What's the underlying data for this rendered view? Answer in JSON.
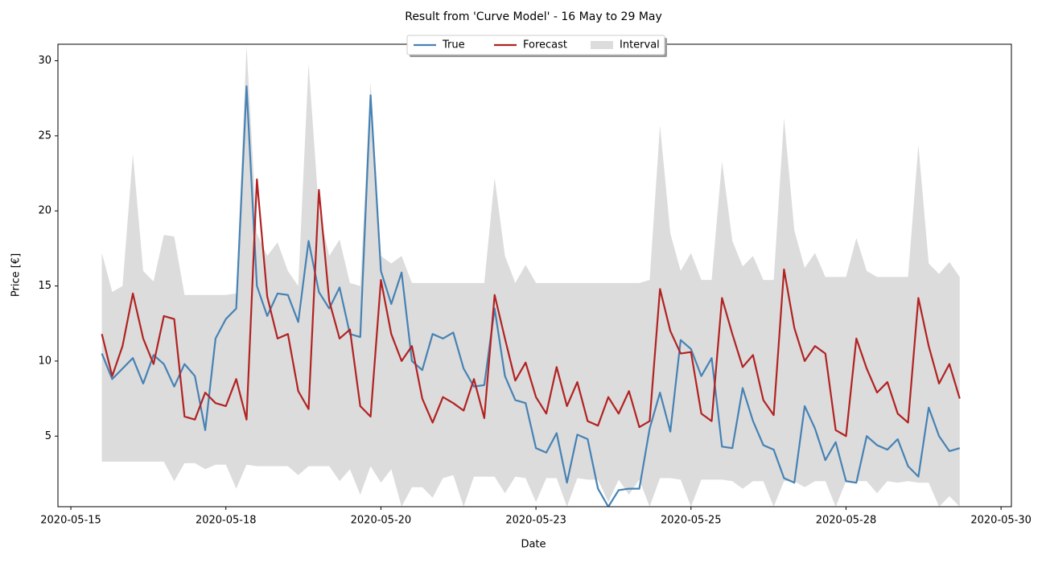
{
  "chart_data": {
    "type": "line",
    "title": "Result from 'Curve Model' - 16 May to 29 May",
    "x_label": "Date",
    "y_label": "Price [€]",
    "xlim": [
      "2020-05-15T07:00",
      "2020-05-30T16:00"
    ],
    "ylim": [
      0.3,
      31.1
    ],
    "yticks": [
      5,
      10,
      15,
      20,
      25,
      30
    ],
    "xticks": [
      {
        "value": "2020-05-15T12:00",
        "label": "2020-05-15"
      },
      {
        "value": "2020-05-18T00:00",
        "label": "2020-05-18"
      },
      {
        "value": "2020-05-20T12:00",
        "label": "2020-05-20"
      },
      {
        "value": "2020-05-23T00:00",
        "label": "2020-05-23"
      },
      {
        "value": "2020-05-25T12:00",
        "label": "2020-05-25"
      },
      {
        "value": "2020-05-28T00:00",
        "label": "2020-05-28"
      },
      {
        "value": "2020-05-30T12:00",
        "label": "2020-05-30"
      }
    ],
    "grid": false,
    "legend": "top",
    "x": [
      "2020-05-16T00:00",
      "2020-05-16T04:00",
      "2020-05-16T08:00",
      "2020-05-16T12:00",
      "2020-05-16T16:00",
      "2020-05-16T20:00",
      "2020-05-17T00:00",
      "2020-05-17T04:00",
      "2020-05-17T08:00",
      "2020-05-17T12:00",
      "2020-05-17T16:00",
      "2020-05-17T20:00",
      "2020-05-18T00:00",
      "2020-05-18T04:00",
      "2020-05-18T08:00",
      "2020-05-18T12:00",
      "2020-05-18T16:00",
      "2020-05-18T20:00",
      "2020-05-19T00:00",
      "2020-05-19T04:00",
      "2020-05-19T08:00",
      "2020-05-19T12:00",
      "2020-05-19T16:00",
      "2020-05-19T20:00",
      "2020-05-20T00:00",
      "2020-05-20T04:00",
      "2020-05-20T08:00",
      "2020-05-20T12:00",
      "2020-05-20T16:00",
      "2020-05-20T20:00",
      "2020-05-21T00:00",
      "2020-05-21T04:00",
      "2020-05-21T08:00",
      "2020-05-21T12:00",
      "2020-05-21T16:00",
      "2020-05-21T20:00",
      "2020-05-22T00:00",
      "2020-05-22T04:00",
      "2020-05-22T08:00",
      "2020-05-22T12:00",
      "2020-05-22T16:00",
      "2020-05-22T20:00",
      "2020-05-23T00:00",
      "2020-05-23T04:00",
      "2020-05-23T08:00",
      "2020-05-23T12:00",
      "2020-05-23T16:00",
      "2020-05-23T20:00",
      "2020-05-24T00:00",
      "2020-05-24T04:00",
      "2020-05-24T08:00",
      "2020-05-24T12:00",
      "2020-05-24T16:00",
      "2020-05-24T20:00",
      "2020-05-25T00:00",
      "2020-05-25T04:00",
      "2020-05-25T08:00",
      "2020-05-25T12:00",
      "2020-05-25T16:00",
      "2020-05-25T20:00",
      "2020-05-26T00:00",
      "2020-05-26T04:00",
      "2020-05-26T08:00",
      "2020-05-26T12:00",
      "2020-05-26T16:00",
      "2020-05-26T20:00",
      "2020-05-27T00:00",
      "2020-05-27T04:00",
      "2020-05-27T08:00",
      "2020-05-27T12:00",
      "2020-05-27T16:00",
      "2020-05-27T20:00",
      "2020-05-28T00:00",
      "2020-05-28T04:00",
      "2020-05-28T08:00",
      "2020-05-28T12:00",
      "2020-05-28T16:00",
      "2020-05-28T20:00",
      "2020-05-29T00:00",
      "2020-05-29T04:00",
      "2020-05-29T08:00",
      "2020-05-29T12:00",
      "2020-05-29T16:00",
      "2020-05-29T20:00"
    ],
    "series": [
      {
        "name": "Interval",
        "color": "#dcdcdc",
        "upper": [
          17.2,
          14.6,
          15.0,
          23.8,
          16.0,
          15.3,
          18.4,
          18.3,
          14.4,
          14.4,
          14.4,
          14.4,
          14.4,
          14.5,
          31.0,
          18.5,
          17.0,
          17.9,
          16.0,
          15.0,
          29.8,
          20.0,
          17.0,
          18.1,
          15.2,
          15.0,
          28.6,
          17.0,
          16.5,
          17.0,
          15.2,
          15.2,
          15.2,
          15.2,
          15.2,
          15.2,
          15.2,
          15.2,
          22.2,
          17.0,
          15.2,
          16.4,
          15.2,
          15.2,
          15.2,
          15.2,
          15.2,
          15.2,
          15.2,
          15.2,
          15.2,
          15.2,
          15.2,
          15.4,
          25.7,
          18.5,
          16.0,
          17.2,
          15.4,
          15.4,
          23.3,
          18.0,
          16.3,
          17.0,
          15.4,
          15.4,
          26.2,
          18.7,
          16.2,
          17.2,
          15.6,
          15.6,
          15.6,
          18.2,
          16.0,
          15.6,
          15.6,
          15.6,
          15.6,
          24.4,
          16.5,
          15.8,
          16.6,
          15.6
        ],
        "lower": [
          3.3,
          3.3,
          3.3,
          3.3,
          3.3,
          3.3,
          3.3,
          2.0,
          3.2,
          3.2,
          2.8,
          3.1,
          3.1,
          1.5,
          3.1,
          3.0,
          3.0,
          3.0,
          3.0,
          2.4,
          3.0,
          3.0,
          3.0,
          2.0,
          2.8,
          1.1,
          3.0,
          1.9,
          2.8,
          0.3,
          1.6,
          1.6,
          0.9,
          2.2,
          2.4,
          0.3,
          2.3,
          2.3,
          2.3,
          1.2,
          2.3,
          2.2,
          0.6,
          2.2,
          2.2,
          0.3,
          2.2,
          2.1,
          2.1,
          0.6,
          2.1,
          1.1,
          2.1,
          0.3,
          2.2,
          2.2,
          2.1,
          0.3,
          2.1,
          2.1,
          2.1,
          2.0,
          1.5,
          2.0,
          2.0,
          0.3,
          2.0,
          2.0,
          1.6,
          2.0,
          2.0,
          0.3,
          2.0,
          2.0,
          2.0,
          1.2,
          2.0,
          1.9,
          2.0,
          1.9,
          1.9,
          0.3,
          1.0,
          0.3
        ]
      },
      {
        "name": "True",
        "color": "#4682b4",
        "values": [
          10.5,
          8.8,
          9.5,
          10.2,
          8.5,
          10.4,
          9.8,
          8.3,
          9.8,
          9.0,
          5.4,
          11.5,
          12.8,
          13.5,
          28.3,
          15.0,
          13.0,
          14.5,
          14.4,
          12.6,
          18.0,
          14.6,
          13.5,
          14.9,
          11.8,
          11.6,
          27.7,
          16.0,
          13.8,
          15.9,
          10.0,
          9.4,
          11.8,
          11.5,
          11.9,
          9.5,
          8.3,
          8.4,
          13.5,
          9.0,
          7.4,
          7.2,
          4.2,
          3.9,
          5.2,
          1.9,
          5.1,
          4.8,
          1.5,
          0.3,
          1.4,
          1.5,
          1.5,
          5.5,
          7.9,
          5.3,
          11.4,
          10.8,
          9.0,
          10.2,
          4.3,
          4.2,
          8.2,
          6.0,
          4.4,
          4.1,
          2.2,
          1.9,
          7.0,
          5.5,
          3.4,
          4.6,
          2.0,
          1.9,
          5.0,
          4.4,
          4.1,
          4.8,
          3.0,
          2.3,
          6.9,
          5.0,
          4.0,
          4.2
        ]
      },
      {
        "name": "Forecast",
        "color": "#b22222",
        "values": [
          11.8,
          9.0,
          11.0,
          14.5,
          11.5,
          9.8,
          13.0,
          12.8,
          6.3,
          6.1,
          7.9,
          7.2,
          7.0,
          8.8,
          6.1,
          22.1,
          14.3,
          11.5,
          11.8,
          8.0,
          6.8,
          21.4,
          14.0,
          11.5,
          12.1,
          7.0,
          6.3,
          15.4,
          11.8,
          10.0,
          11.0,
          7.5,
          5.9,
          7.6,
          7.2,
          6.7,
          8.8,
          6.2,
          14.4,
          11.5,
          8.7,
          9.9,
          7.6,
          6.5,
          9.6,
          7.0,
          8.6,
          6.0,
          5.7,
          7.6,
          6.5,
          8.0,
          5.6,
          6.0,
          14.8,
          12.0,
          10.5,
          10.6,
          6.5,
          6.0,
          14.2,
          11.8,
          9.6,
          10.4,
          7.4,
          6.4,
          16.1,
          12.2,
          10.0,
          11.0,
          10.5,
          5.4,
          5.0,
          11.5,
          9.5,
          7.9,
          8.6,
          6.5,
          5.9,
          14.2,
          11.0,
          8.5,
          9.8,
          7.5
        ]
      }
    ]
  }
}
